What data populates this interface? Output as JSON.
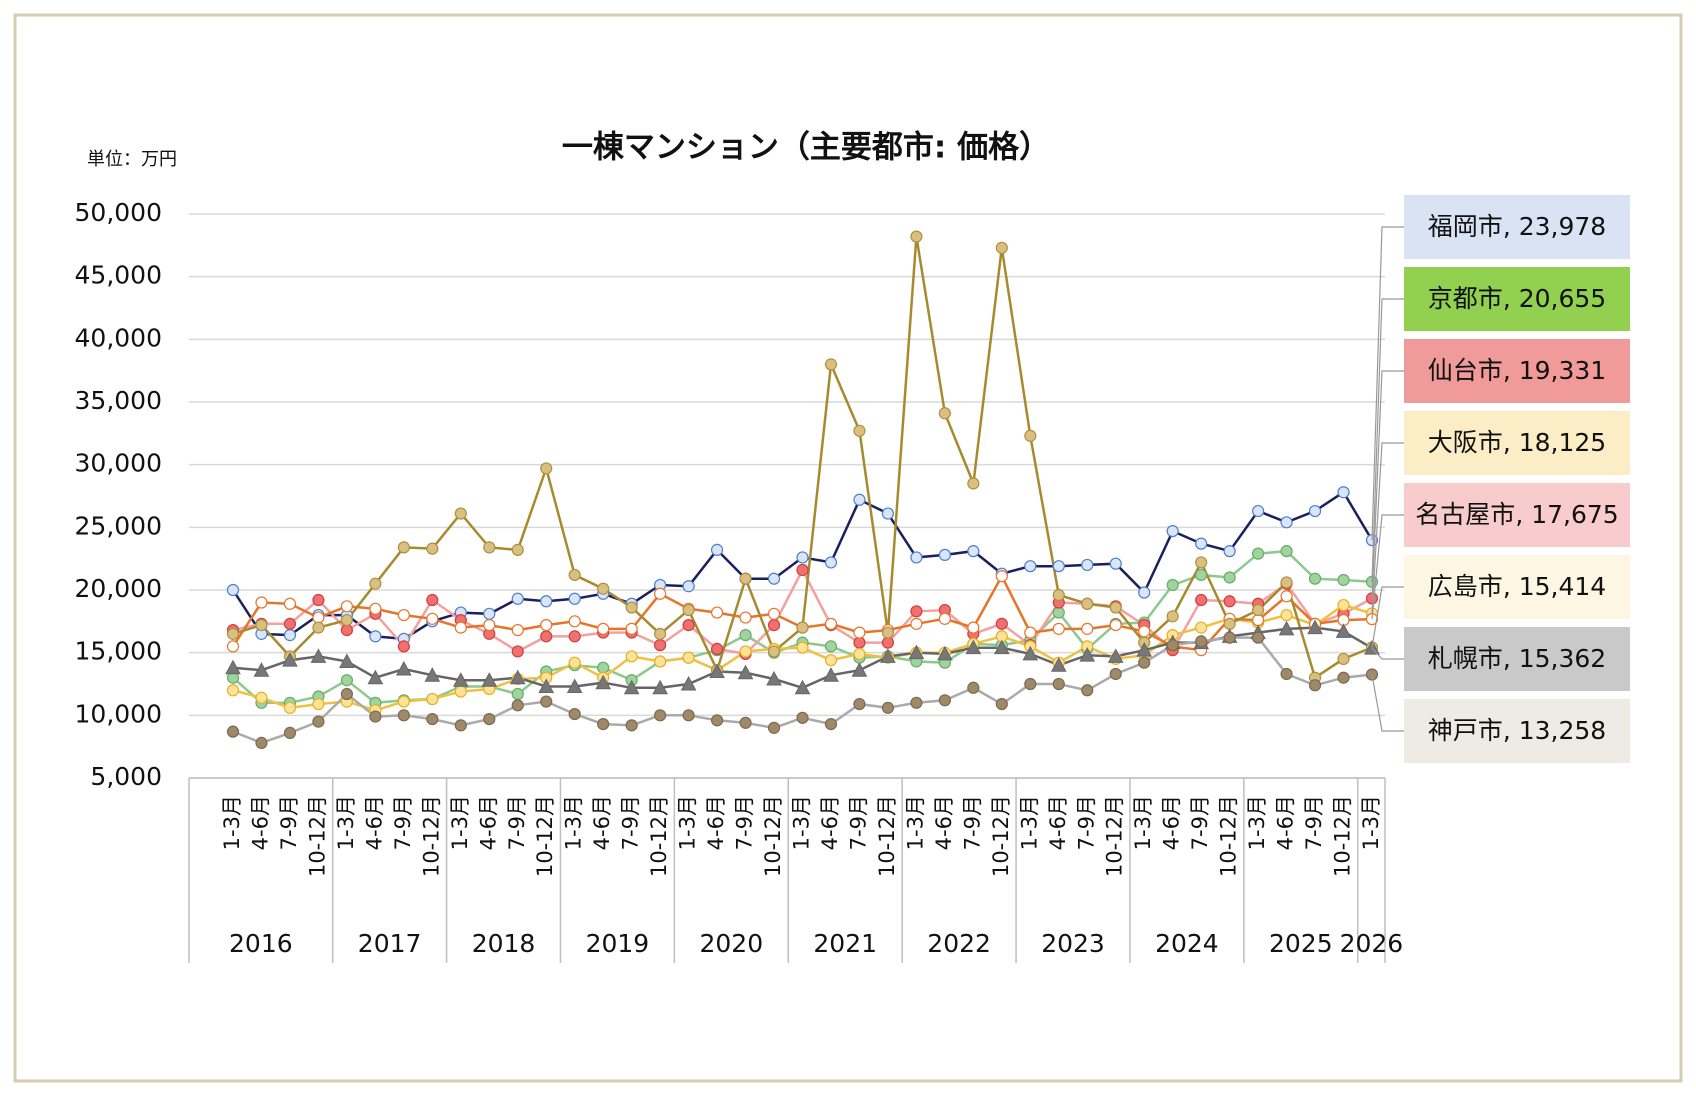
{
  "chart_data": {
    "type": "line",
    "title": "一棟マンション（主要都市: 価格）",
    "unit_label": "単位：万円",
    "categories": [
      "1-3月",
      "4-6月",
      "7-9月",
      "10-12月",
      "1-3月",
      "4-6月",
      "7-9月",
      "10-12月",
      "1-3月",
      "4-6月",
      "7-9月",
      "10-12月",
      "1-3月",
      "4-6月",
      "7-9月",
      "10-12月",
      "1-3月",
      "4-6月",
      "7-9月",
      "10-12月",
      "1-3月",
      "4-6月",
      "7-9月",
      "10-12月",
      "1-3月",
      "4-6月",
      "7-9月",
      "10-12月",
      "1-3月",
      "4-6月",
      "7-9月",
      "10-12月",
      "1-3月",
      "4-6月",
      "7-9月",
      "10-12月",
      "1-3月",
      "4-6月",
      "7-9月",
      "10-12月",
      "1-3月"
    ],
    "years": [
      "2016",
      "2017",
      "2018",
      "2019",
      "2020",
      "2021",
      "2022",
      "2023",
      "2024",
      "2025",
      "2026"
    ],
    "ylim": [
      5000,
      50000
    ],
    "yticks": [
      {
        "value": 5000,
        "label": "5,000"
      },
      {
        "value": 10000,
        "label": "10,000"
      },
      {
        "value": 15000,
        "label": "15,000"
      },
      {
        "value": 20000,
        "label": "20,000"
      },
      {
        "value": 25000,
        "label": "25,000"
      },
      {
        "value": 30000,
        "label": "30,000"
      },
      {
        "value": 35000,
        "label": "35,000"
      },
      {
        "value": 40000,
        "label": "40,000"
      },
      {
        "value": 45000,
        "label": "45,000"
      },
      {
        "value": 50000,
        "label": "50,000"
      }
    ],
    "grid": true,
    "label_separator": ", ",
    "series": [
      {
        "name": "福岡市",
        "end_label": "23,978",
        "color": "#1b1f5e",
        "marker_fill": "#dae6f8",
        "marker_stroke": "#4a7fd0",
        "marker": "circle",
        "label_color": "#dae3f3",
        "values": [
          20000,
          16500,
          16400,
          18000,
          18000,
          16300,
          16100,
          17500,
          18200,
          18100,
          19300,
          19100,
          19300,
          19700,
          18900,
          20400,
          20300,
          23200,
          20900,
          20900,
          22600,
          22200,
          27200,
          26100,
          22600,
          22800,
          23100,
          21300,
          21900,
          21900,
          22000,
          22100,
          19800,
          24700,
          23700,
          23100,
          26300,
          25400,
          26300,
          27800,
          23978
        ]
      },
      {
        "name": "京都市",
        "end_label": "20,655",
        "color": "#8cc98c",
        "marker_fill": "#9fd49f",
        "marker_stroke": "#6aaa6a",
        "marker": "circle",
        "label_color": "#92d050",
        "values": [
          13000,
          11000,
          11000,
          11500,
          12800,
          11000,
          11200,
          11300,
          12300,
          12300,
          11700,
          13500,
          14000,
          13800,
          12800,
          14300,
          14600,
          15200,
          16400,
          15000,
          15800,
          15500,
          14600,
          14700,
          14300,
          14200,
          15700,
          15600,
          16000,
          18200,
          15300,
          17300,
          17400,
          20400,
          21200,
          21000,
          22900,
          23100,
          20900,
          20800,
          20655
        ]
      },
      {
        "name": "仙台市",
        "end_label": "19,331",
        "color": "#f4a0a0",
        "marker_fill": "#f07070",
        "marker_stroke": "#d04040",
        "marker": "circle",
        "label_color": "#f19a9a",
        "values": [
          16800,
          17300,
          17300,
          19200,
          16800,
          18100,
          15500,
          19200,
          17600,
          16500,
          15100,
          16300,
          16300,
          16600,
          16600,
          15600,
          17200,
          15300,
          14900,
          17200,
          21600,
          17200,
          15800,
          15800,
          18300,
          18400,
          16500,
          17300,
          15600,
          19000,
          18900,
          18700,
          17200,
          15200,
          19200,
          19100,
          18900,
          20500,
          17300,
          18100,
          19331
        ]
      },
      {
        "name": "大阪市",
        "end_label": "18,125",
        "color": "#f0c040",
        "marker_fill": "#fde39a",
        "marker_stroke": "#e8b020",
        "marker": "circle",
        "label_color": "#fbedc5",
        "values": [
          12000,
          11400,
          10600,
          10900,
          11100,
          10400,
          11100,
          11300,
          11900,
          12100,
          12900,
          13000,
          14200,
          13000,
          14700,
          14300,
          14600,
          13600,
          15100,
          15300,
          15400,
          14400,
          14900,
          14600,
          15000,
          15000,
          15700,
          16300,
          15500,
          14200,
          15500,
          14500,
          14800,
          16400,
          17000,
          17700,
          17400,
          18000,
          17200,
          18800,
          18125
        ]
      },
      {
        "name": "名古屋市",
        "end_label": "17,675",
        "color": "#e8742a",
        "marker_fill": "#ffffff",
        "marker_stroke": "#e8742a",
        "marker": "circle",
        "label_color": "#f8cccc",
        "values": [
          15500,
          19000,
          18900,
          17800,
          18700,
          18500,
          18000,
          17700,
          17000,
          17200,
          16800,
          17200,
          17500,
          16900,
          16900,
          19700,
          18500,
          18200,
          17800,
          18100,
          17000,
          17300,
          16600,
          16800,
          17300,
          17700,
          17000,
          21100,
          16600,
          16900,
          16900,
          17200,
          16700,
          15500,
          15200,
          17700,
          17600,
          19500,
          17300,
          17600,
          17675
        ]
      },
      {
        "name": "広島市",
        "end_label": "15,414",
        "color": "#a88a2e",
        "marker_fill": "#d9bf80",
        "marker_stroke": "#b09040",
        "marker": "circle",
        "label_color": "#fdf6e3",
        "values": [
          16500,
          17200,
          14700,
          17000,
          17600,
          20500,
          23400,
          23300,
          26100,
          23400,
          23200,
          29700,
          21200,
          20100,
          18600,
          16500,
          18400,
          13600,
          20900,
          15100,
          17000,
          38000,
          32700,
          16600,
          48200,
          34100,
          28500,
          47300,
          32300,
          19600,
          18900,
          18600,
          15800,
          17900,
          22200,
          17300,
          18400,
          20600,
          13000,
          14500,
          15414
        ]
      },
      {
        "name": "札幌市",
        "end_label": "15,362",
        "color": "#666666",
        "marker_fill": "#777777",
        "marker_stroke": "#666666",
        "marker": "triangle",
        "label_color": "#c9c9c9",
        "values": [
          13800,
          13600,
          14400,
          14700,
          14300,
          13000,
          13700,
          13200,
          12800,
          12800,
          13000,
          12300,
          12300,
          12600,
          12200,
          12200,
          12500,
          13500,
          13400,
          12900,
          12200,
          13200,
          13600,
          14700,
          15000,
          14900,
          15400,
          15400,
          14900,
          14000,
          14800,
          14700,
          15200,
          15800,
          15800,
          16300,
          16600,
          16900,
          17000,
          16700,
          15362
        ]
      },
      {
        "name": "神戸市",
        "end_label": "13,258",
        "color": "#aaaaaa",
        "marker_fill": "#9e8a6a",
        "marker_stroke": "#7d6a4e",
        "marker": "circle",
        "label_color": "#eeebe5",
        "values": [
          8700,
          7800,
          8600,
          9500,
          11700,
          9900,
          10000,
          9700,
          9200,
          9700,
          10800,
          11100,
          10100,
          9300,
          9200,
          10000,
          10000,
          9600,
          9400,
          9000,
          9800,
          9300,
          10900,
          10600,
          11000,
          11200,
          12200,
          10900,
          12500,
          12500,
          12000,
          13300,
          14200,
          15600,
          15900,
          16200,
          16200,
          13300,
          12400,
          13000,
          13258
        ]
      }
    ]
  }
}
